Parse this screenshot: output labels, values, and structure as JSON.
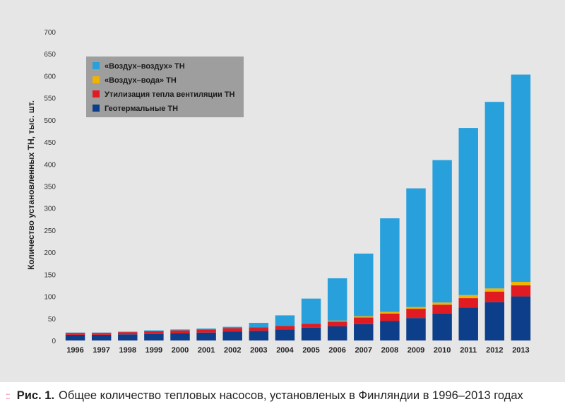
{
  "chart_data": {
    "type": "bar",
    "stacked": true,
    "ylabel": "Количество установленных ТН, тыс. шт.",
    "xlabel": "",
    "ylim": [
      0,
      700
    ],
    "yticks": [
      0,
      50,
      100,
      150,
      200,
      250,
      300,
      350,
      400,
      450,
      500,
      550,
      600,
      650,
      700
    ],
    "categories": [
      "1996",
      "1997",
      "1998",
      "1999",
      "2000",
      "2001",
      "2002",
      "2003",
      "2004",
      "2005",
      "2006",
      "2007",
      "2008",
      "2009",
      "2010",
      "2011",
      "2012",
      "2013"
    ],
    "series": [
      {
        "name": "Геотермальные ТН",
        "color": "#0d3e8a",
        "values": [
          13,
          13,
          14,
          15,
          16,
          18,
          20,
          22,
          25,
          29,
          32,
          37,
          44,
          51,
          61,
          75,
          87,
          100
        ]
      },
      {
        "name": "Утилизация тепла вентиляции ТН",
        "color": "#e01b22",
        "values": [
          4,
          4,
          5,
          6,
          7,
          7,
          8,
          8,
          8,
          9,
          11,
          15,
          17,
          21,
          20,
          21,
          24,
          25
        ]
      },
      {
        "name": "«Воздух–вода» ТН",
        "color": "#f0b400",
        "values": [
          0,
          0,
          0,
          0,
          0,
          0,
          0,
          0,
          0,
          0,
          2,
          3,
          4,
          4,
          5,
          7,
          7,
          8
        ]
      },
      {
        "name": "«Воздух–воздух» ТН",
        "color": "#27a0db",
        "values": [
          1,
          1,
          1,
          2,
          2,
          2,
          3,
          10,
          24,
          57,
          96,
          142,
          212,
          269,
          323,
          379,
          423,
          470
        ]
      }
    ],
    "legend_order": [
      3,
      2,
      1,
      0
    ],
    "legend_position": "top-left",
    "grid": false
  },
  "caption": {
    "decor": "::",
    "figure_label": "Рис. 1.",
    "text": "Общее количество тепловых насосов, установленых в Финляндии в 1996–2013 годах"
  }
}
